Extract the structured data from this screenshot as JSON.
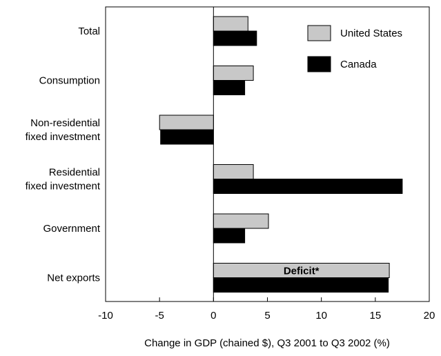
{
  "chart_data": {
    "type": "bar",
    "orientation": "horizontal",
    "categories": [
      [
        "Total"
      ],
      [
        "Consumption"
      ],
      [
        "Non-residential",
        "fixed investment"
      ],
      [
        "Residential",
        "fixed investment"
      ],
      [
        "Government"
      ],
      [
        "Net exports"
      ]
    ],
    "series": [
      {
        "name": "United States",
        "color": "#c8c8c8",
        "values": [
          3.2,
          3.7,
          -5.0,
          3.7,
          5.1,
          16.3
        ]
      },
      {
        "name": "Canada",
        "color": "#000000",
        "values": [
          4.0,
          2.9,
          -4.9,
          17.5,
          2.9,
          16.2
        ]
      }
    ],
    "xlabel": "Change in GDP (chained $), Q3 2001 to Q3 2002 (%)",
    "ylabel": "",
    "xlim": [
      -10,
      20
    ],
    "xticks": [
      -10,
      -5,
      0,
      5,
      10,
      15,
      20
    ],
    "grid": false,
    "legend_position": "top-right",
    "annotations": [
      {
        "text": "Deficit*",
        "category_index": 5,
        "series_index": 0
      }
    ]
  }
}
